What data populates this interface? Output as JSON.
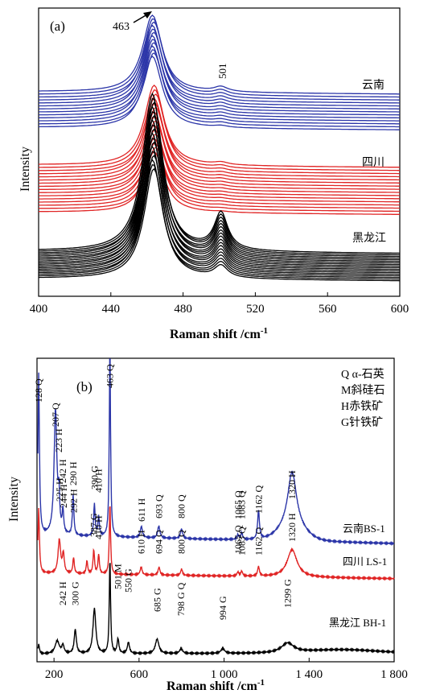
{
  "chart_data": [
    {
      "panel": "(a)",
      "type": "line",
      "xlabel": "Raman shift /cm",
      "xlabel_sup": "-1",
      "ylabel": "Intensity",
      "xlim": [
        400,
        600
      ],
      "xticks": [
        "400",
        "440",
        "480",
        "520",
        "560",
        "600"
      ],
      "arrow_label": "463",
      "peak_label_501": "501",
      "series": [
        {
          "name": "云南",
          "color": "#2b35a8",
          "count": 13,
          "peak_main": 463,
          "peak_secondary": 501
        },
        {
          "name": "四川",
          "color": "#e02424",
          "count": 16,
          "peak_main": 464,
          "peak_secondary": 501
        },
        {
          "name": "黑龙江",
          "color": "#000000",
          "count": 18,
          "peak_main": 463,
          "peak_secondary": 501
        }
      ]
    },
    {
      "panel": "(b)",
      "type": "line",
      "xlabel": "Raman shift /cm",
      "xlabel_sup": "-1",
      "ylabel": "Intensity",
      "xlim": [
        120,
        1800
      ],
      "xticks": [
        "200",
        "600",
        "1 000",
        "1 400",
        "1 800"
      ],
      "legend": [
        "Q α-石英",
        "M斜硅石",
        "H赤铁矿",
        "G针铁矿"
      ],
      "series": [
        {
          "name": "云南BS-1",
          "color": "#2b35a8",
          "peaks": [
            {
              "x": 128,
              "label": "128 Q"
            },
            {
              "x": 207,
              "label": "207 Q"
            },
            {
              "x": 223,
              "label": "223 H"
            },
            {
              "x": 242,
              "label": "242 H"
            },
            {
              "x": 290,
              "label": "290 H"
            },
            {
              "x": 390,
              "label": "390 G"
            },
            {
              "x": 410,
              "label": "410 H"
            },
            {
              "x": 463,
              "label": "463 Q"
            },
            {
              "x": 611,
              "label": "611 H"
            },
            {
              "x": 693,
              "label": "693 Q"
            },
            {
              "x": 800,
              "label": "800 Q"
            },
            {
              "x": 1065,
              "label": "1065 Q"
            },
            {
              "x": 1083,
              "label": "1083 Q"
            },
            {
              "x": 1162,
              "label": "1162 Q"
            },
            {
              "x": 1320,
              "label": "1320 H"
            }
          ]
        },
        {
          "name": "四川 LS-1",
          "color": "#e02424",
          "peaks": [
            {
              "x": 225,
              "label": "225 H"
            },
            {
              "x": 244,
              "label": "244 H"
            },
            {
              "x": 292,
              "label": "292 H"
            },
            {
              "x": 387,
              "label": "387 G"
            },
            {
              "x": 410,
              "label": "410 H"
            },
            {
              "x": 610,
              "label": "610 H"
            },
            {
              "x": 694,
              "label": "694 Q"
            },
            {
              "x": 800,
              "label": "800 Q"
            },
            {
              "x": 1065,
              "label": "1065 Q"
            },
            {
              "x": 1083,
              "label": "1083 Q"
            },
            {
              "x": 1162,
              "label": "1162 Q"
            },
            {
              "x": 1320,
              "label": "1320 H"
            }
          ]
        },
        {
          "name": "黑龙江 BH-1",
          "color": "#000000",
          "peaks": [
            {
              "x": 242,
              "label": "242 H"
            },
            {
              "x": 300,
              "label": "300 G"
            },
            {
              "x": 501,
              "label": "501 M"
            },
            {
              "x": 550,
              "label": "550 G"
            },
            {
              "x": 685,
              "label": "685 G"
            },
            {
              "x": 798,
              "label": "798 G Q"
            },
            {
              "x": 994,
              "label": "994 G"
            },
            {
              "x": 1299,
              "label": "1299 G"
            }
          ]
        }
      ]
    }
  ]
}
